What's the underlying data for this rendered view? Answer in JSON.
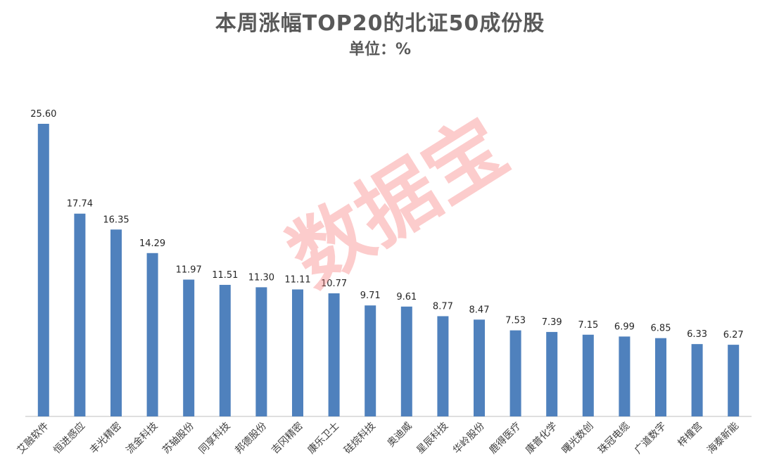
{
  "chart_data": {
    "type": "bar",
    "title": "本周涨幅TOP20的北证50成份股",
    "subtitle": "单位：%",
    "categories": [
      "艾融软件",
      "恒进感应",
      "丰光精密",
      "流金科技",
      "苏轴股份",
      "同享科技",
      "邦德股份",
      "吉冈精密",
      "康乐卫士",
      "硅烷科技",
      "奥迪威",
      "星辰科技",
      "华岭股份",
      "鹿得医疗",
      "康普化学",
      "曙光数创",
      "珠冠电缆",
      "广道数字",
      "梓橦宫",
      "海泰新能"
    ],
    "values": [
      25.6,
      17.74,
      16.35,
      14.29,
      11.97,
      11.51,
      11.3,
      11.11,
      10.77,
      9.71,
      9.61,
      8.77,
      8.47,
      7.53,
      7.39,
      7.15,
      6.99,
      6.85,
      6.33,
      6.27
    ],
    "value_labels": [
      "25.60",
      "17.74",
      "16.35",
      "14.29",
      "11.97",
      "11.51",
      "11.30",
      "11.11",
      "10.77",
      "9.71",
      "9.61",
      "8.77",
      "8.47",
      "7.53",
      "7.39",
      "7.15",
      "6.99",
      "6.85",
      "6.33",
      "6.27"
    ],
    "ylim": [
      0,
      25.6
    ],
    "grid": false,
    "legend": "none",
    "bar_color": "#4f81bd"
  },
  "watermark": "数据宝"
}
